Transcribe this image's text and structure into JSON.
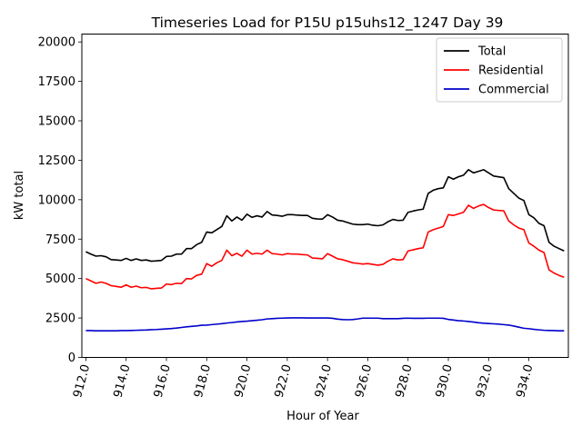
{
  "chart_data": {
    "type": "line",
    "title": "Timeseries Load for P15U p15uhs12_1247  Day 39",
    "xlabel": "Hour of Year",
    "ylabel": "kW total",
    "xlim": [
      911.8,
      935.96
    ],
    "ylim": [
      0,
      20500
    ],
    "xticks": [
      912,
      914,
      916,
      918,
      920,
      922,
      924,
      926,
      928,
      930,
      932,
      934
    ],
    "xtick_labels": [
      "912.0",
      "914.0",
      "916.0",
      "918.0",
      "920.0",
      "922.0",
      "924.0",
      "926.0",
      "928.0",
      "930.0",
      "932.0",
      "934.0"
    ],
    "yticks": [
      0,
      2500,
      5000,
      7500,
      10000,
      12500,
      15000,
      17500,
      20000
    ],
    "ytick_labels": [
      "0",
      "2500",
      "5000",
      "7500",
      "10000",
      "12500",
      "15000",
      "17500",
      "20000"
    ],
    "legend_position": "upper-right",
    "x": [
      912.0,
      912.25,
      912.5,
      912.75,
      913.0,
      913.25,
      913.5,
      913.75,
      914.0,
      914.25,
      914.5,
      914.75,
      915.0,
      915.25,
      915.5,
      915.75,
      916.0,
      916.25,
      916.5,
      916.75,
      917.0,
      917.25,
      917.5,
      917.75,
      918.0,
      918.25,
      918.5,
      918.75,
      919.0,
      919.25,
      919.5,
      919.75,
      920.0,
      920.25,
      920.5,
      920.75,
      921.0,
      921.25,
      921.5,
      921.75,
      922.0,
      922.25,
      922.5,
      922.75,
      923.0,
      923.25,
      923.5,
      923.75,
      924.0,
      924.25,
      924.5,
      924.75,
      925.0,
      925.25,
      925.5,
      925.75,
      926.0,
      926.25,
      926.5,
      926.75,
      927.0,
      927.25,
      927.5,
      927.75,
      928.0,
      928.25,
      928.5,
      928.75,
      929.0,
      929.25,
      929.5,
      929.75,
      930.0,
      930.25,
      930.5,
      930.75,
      931.0,
      931.25,
      931.5,
      931.75,
      932.0,
      932.25,
      932.5,
      932.75,
      933.0,
      933.25,
      933.5,
      933.75,
      934.0,
      934.25,
      934.5,
      934.75,
      935.0,
      935.25,
      935.5,
      935.75
    ],
    "series": [
      {
        "name": "Total",
        "color": "#000000",
        "values": [
          6700,
          6550,
          6420,
          6450,
          6380,
          6200,
          6180,
          6150,
          6280,
          6150,
          6250,
          6150,
          6180,
          6100,
          6120,
          6150,
          6400,
          6420,
          6550,
          6550,
          6900,
          6900,
          7150,
          7300,
          7950,
          7900,
          8100,
          8300,
          8980,
          8650,
          8900,
          8700,
          9080,
          8880,
          8980,
          8900,
          9250,
          9030,
          9000,
          8950,
          9050,
          9050,
          9020,
          9000,
          9000,
          8820,
          8780,
          8770,
          9050,
          8900,
          8700,
          8650,
          8550,
          8450,
          8420,
          8420,
          8450,
          8380,
          8350,
          8400,
          8600,
          8750,
          8680,
          8700,
          9200,
          9280,
          9350,
          9400,
          10400,
          10600,
          10700,
          10750,
          11450,
          11300,
          11450,
          11550,
          11900,
          11700,
          11800,
          11900,
          11700,
          11500,
          11450,
          11400,
          10700,
          10400,
          10100,
          9950,
          9050,
          8850,
          8500,
          8350,
          7300,
          7050,
          6900,
          6750
        ]
      },
      {
        "name": "Residential",
        "color": "#ff0000",
        "values": [
          5000,
          4850,
          4700,
          4780,
          4700,
          4550,
          4500,
          4450,
          4600,
          4450,
          4520,
          4420,
          4440,
          4350,
          4380,
          4400,
          4650,
          4620,
          4700,
          4680,
          5000,
          4980,
          5200,
          5280,
          5950,
          5780,
          6000,
          6150,
          6800,
          6450,
          6600,
          6420,
          6800,
          6550,
          6600,
          6550,
          6800,
          6580,
          6550,
          6500,
          6580,
          6550,
          6550,
          6520,
          6500,
          6300,
          6280,
          6250,
          6580,
          6420,
          6250,
          6200,
          6100,
          6000,
          5960,
          5920,
          5950,
          5900,
          5850,
          5900,
          6100,
          6250,
          6180,
          6200,
          6750,
          6820,
          6900,
          6950,
          7950,
          8100,
          8200,
          8300,
          9050,
          9000,
          9100,
          9200,
          9650,
          9450,
          9600,
          9700,
          9500,
          9350,
          9320,
          9300,
          8650,
          8400,
          8200,
          8100,
          7250,
          7050,
          6800,
          6650,
          5550,
          5350,
          5200,
          5080
        ]
      },
      {
        "name": "Commercial",
        "color": "#0000cc",
        "values": [
          1700,
          1700,
          1690,
          1690,
          1690,
          1690,
          1690,
          1700,
          1700,
          1710,
          1720,
          1730,
          1740,
          1760,
          1770,
          1790,
          1810,
          1830,
          1860,
          1900,
          1940,
          1970,
          2000,
          2040,
          2050,
          2080,
          2110,
          2140,
          2180,
          2210,
          2250,
          2280,
          2300,
          2330,
          2360,
          2390,
          2440,
          2460,
          2480,
          2490,
          2500,
          2510,
          2510,
          2510,
          2500,
          2500,
          2500,
          2500,
          2500,
          2480,
          2430,
          2400,
          2390,
          2400,
          2440,
          2490,
          2490,
          2490,
          2490,
          2460,
          2460,
          2460,
          2460,
          2480,
          2490,
          2480,
          2480,
          2480,
          2490,
          2490,
          2490,
          2480,
          2410,
          2370,
          2330,
          2310,
          2280,
          2240,
          2200,
          2170,
          2150,
          2130,
          2110,
          2080,
          2050,
          1990,
          1920,
          1850,
          1820,
          1780,
          1750,
          1720,
          1710,
          1700,
          1690,
          1690
        ]
      }
    ]
  }
}
